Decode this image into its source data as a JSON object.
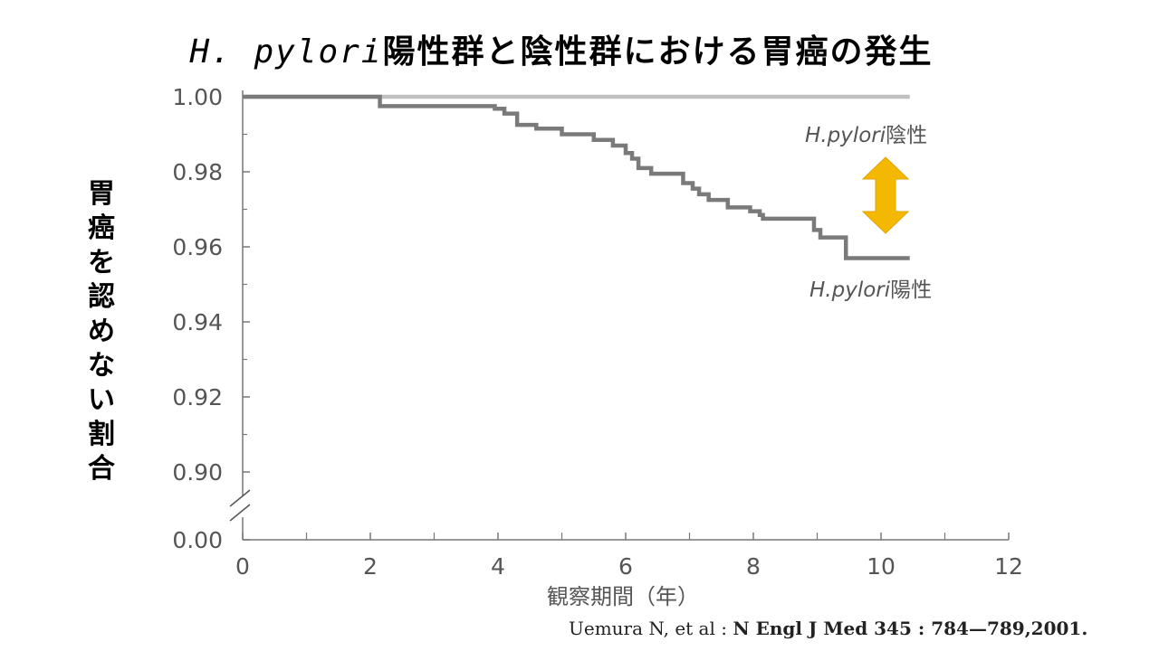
{
  "title": {
    "italic": "H. pylori",
    "rest": "陽性群と陰性群における胃癌の発生"
  },
  "citation": {
    "authors": "Uemura N, et al : ",
    "journal": "N Engl J Med 345 : 784—789,2001."
  },
  "chart_data": {
    "type": "line",
    "step": true,
    "ylabel": "胃癌を認めない割合",
    "xlabel": "観察期間（年）",
    "x_ticks": [
      "0",
      "2",
      "4",
      "6",
      "8",
      "10",
      "12"
    ],
    "y_ticks": [
      "1.00",
      "0.98",
      "0.96",
      "0.94",
      "0.92",
      "0.90",
      "0.00"
    ],
    "xlim": [
      0,
      12
    ],
    "ylim": [
      0.89,
      1.0
    ],
    "y_axis_break": true,
    "series": [
      {
        "name": "H.pylori 陰性",
        "color": "#c0c0c0",
        "x": [
          0,
          10.45
        ],
        "y": [
          1.0,
          1.0
        ]
      },
      {
        "name": "H.pylori 陽性",
        "color": "#7a7a7a",
        "x": [
          0,
          2.15,
          3.95,
          4.1,
          4.3,
          4.6,
          5.0,
          5.5,
          5.8,
          6.0,
          6.1,
          6.2,
          6.4,
          6.9,
          7.05,
          7.15,
          7.3,
          7.6,
          7.95,
          8.1,
          8.15,
          8.95,
          9.05,
          9.45,
          10.45
        ],
        "y": [
          1.0,
          0.9975,
          0.9968,
          0.9955,
          0.9925,
          0.9915,
          0.99,
          0.9885,
          0.987,
          0.985,
          0.9835,
          0.981,
          0.9795,
          0.977,
          0.9755,
          0.974,
          0.9725,
          0.9705,
          0.9695,
          0.9685,
          0.9675,
          0.9645,
          0.9625,
          0.957,
          0.957
        ]
      }
    ],
    "annotations": {
      "negative_label": {
        "italic": "H.pylori",
        "rest": "陰性"
      },
      "positive_label": {
        "italic": "H.pylori",
        "rest": "陽性"
      }
    },
    "arrow_color": "#f5b800"
  }
}
